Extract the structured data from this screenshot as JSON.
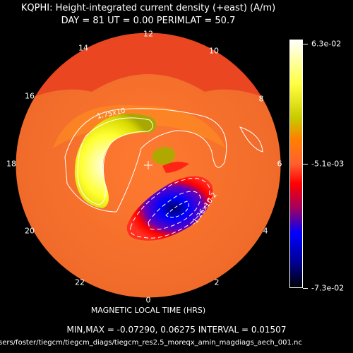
{
  "chart_data": {
    "type": "heatmap",
    "projection": "polar",
    "title": "KQPHI: Height-integrated current density (+east) (A/m)",
    "subtitle": "DAY =   81   UT =   0.00   PERIMLAT =   50.7",
    "xlabel": "MAGNETIC LOCAL TIME (HRS)",
    "hour_labels": [
      "12",
      "14",
      "10",
      "16",
      "8",
      "18",
      "6",
      "20",
      "4",
      "22",
      "2",
      "0"
    ],
    "colorbar": {
      "max_label": "6.3e-02",
      "mid_label": "-5.1e-03",
      "min_label": "-7.3e-02",
      "colors": [
        "#ffffff",
        "#ffff40",
        "#c8c800",
        "#ff8000",
        "#ff6030",
        "#ff0000",
        "#a00060",
        "#0000ff",
        "#000090",
        "#000000"
      ]
    },
    "contour_labels": {
      "positive": "1.75x10",
      "negative": "-1.26x10-2"
    },
    "stats": {
      "text": "MIN,MAX =    -0.07290,    0.06275 INTERVAL =        0.01507",
      "min": -0.0729,
      "max": 0.06275,
      "interval": 0.01507
    },
    "source_file": "sers/foster/tiegcm/tiegcm_diags/tiegcm_res2.5_moreqx_amin_magdiags_aech_001.nc"
  }
}
